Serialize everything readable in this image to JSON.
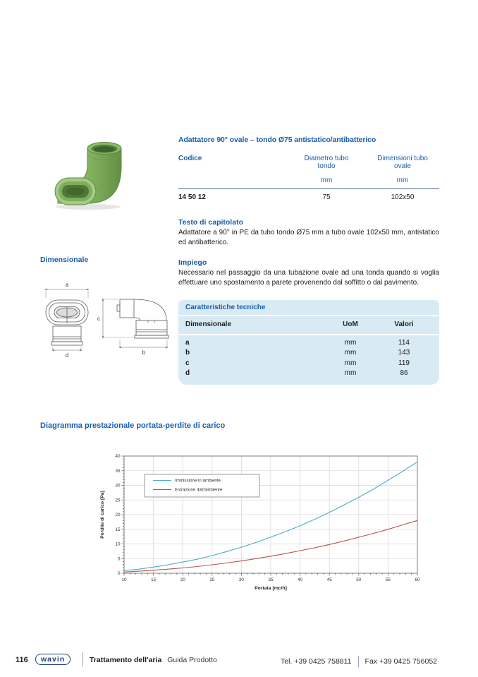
{
  "product": {
    "title": "Adattatore 90° ovale – tondo Ø75 antistatico/antibatterico",
    "table": {
      "col_codice": "Codice",
      "col_diametro": "Diametro tubo tondo",
      "col_dimensioni": "Dimensioni tubo ovale",
      "unit1": "mm",
      "unit2": "mm",
      "code": "14 50 12",
      "diametro": "75",
      "dimensioni": "102x50"
    },
    "capitolato_title": "Testo di capitolato",
    "capitolato_text": "Adattatore a 90° in PE da tubo tondo Ø75 mm a tubo ovale 102x50 mm, antistatico ed antibatterico.",
    "impiego_title": "Impiego",
    "impiego_text": "Necessario nel passaggio da una tubazione ovale ad una tonda quando si voglia effettuare uno spostamento a parete provenendo dal soffitto o dal pavimento."
  },
  "dimensionale_title": "Dimensionale",
  "dims": {
    "a": "a",
    "b": "b",
    "c": "c",
    "d": "d"
  },
  "tech": {
    "title": "Caratteristiche tecniche",
    "col_dim": "Dimensionale",
    "col_uom": "UoM",
    "col_val": "Valori",
    "rows": [
      {
        "name": "a",
        "uom": "mm",
        "value": "114"
      },
      {
        "name": "b",
        "uom": "mm",
        "value": "143"
      },
      {
        "name": "c",
        "uom": "mm",
        "value": "119"
      },
      {
        "name": "d",
        "uom": "mm",
        "value": "86"
      }
    ]
  },
  "chart_data": {
    "type": "line",
    "title": "Diagramma prestazionale portata-perdite di carico",
    "xlabel": "Portata [mc/h]",
    "ylabel": "Perdite di carico [Pa]",
    "xlim": [
      10,
      60
    ],
    "ylim": [
      0,
      40
    ],
    "xticks": [
      10,
      15,
      20,
      25,
      30,
      35,
      40,
      45,
      50,
      55,
      60
    ],
    "yticks": [
      0,
      5,
      10,
      15,
      20,
      25,
      30,
      35,
      40
    ],
    "minor_tick_step": 1,
    "grid": true,
    "legend_position": "upper-left",
    "x": [
      10,
      12.5,
      15,
      17.5,
      20,
      22.5,
      25,
      27.5,
      30,
      32.5,
      35,
      37.5,
      40,
      42.5,
      45,
      47.5,
      50,
      52.5,
      55,
      57.5,
      60
    ],
    "series": [
      {
        "name": "Immissione in ambiente",
        "color": "#4bacc6",
        "values": [
          0.9,
          1.4,
          2.1,
          2.9,
          3.8,
          4.8,
          6.0,
          7.4,
          8.9,
          10.5,
          12.3,
          14.2,
          16.2,
          18.4,
          20.8,
          23.3,
          25.9,
          28.7,
          31.7,
          34.8,
          38.0
        ]
      },
      {
        "name": "Estrazione dall'ambiente",
        "color": "#c0504d",
        "values": [
          0.4,
          0.7,
          1.0,
          1.4,
          1.8,
          2.3,
          2.9,
          3.5,
          4.2,
          5.0,
          5.8,
          6.7,
          7.7,
          8.7,
          9.8,
          11.0,
          12.3,
          13.6,
          15.0,
          16.5,
          18.0
        ]
      }
    ]
  },
  "footer": {
    "page": "116",
    "logo": "wavin",
    "series_bold": "Trattamento dell'aria",
    "series_regular": "Guida Prodotto",
    "tel": "Tel.  +39 0425 758811",
    "fax": "Fax +39 0425 756052"
  },
  "colors": {
    "accent_blue": "#1a5dab",
    "table_bg": "#d8eaf4",
    "rule": "#46658c",
    "logo_blue": "#1d3f77",
    "curve_blue": "#4bacc6",
    "curve_red": "#c0504d",
    "product_green": "#7fb05c"
  }
}
